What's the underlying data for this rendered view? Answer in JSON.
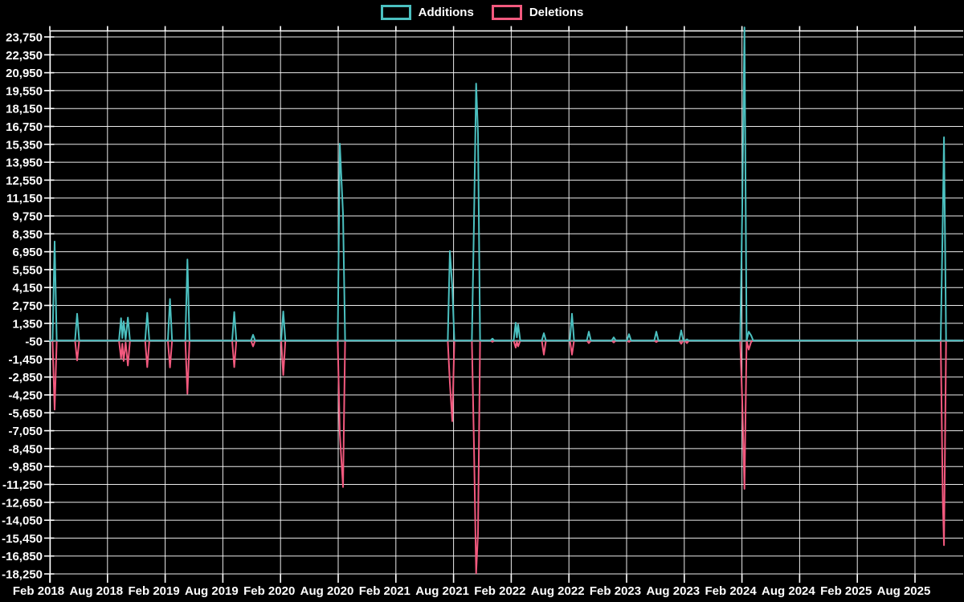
{
  "legend": {
    "additions_label": "Additions",
    "deletions_label": "Deletions"
  },
  "chart_data": {
    "type": "line",
    "title": "",
    "legend_position": "top-center",
    "grid": "on",
    "colors": {
      "background": "#000000",
      "grid": "#ffffff",
      "baseline": "#7E9E9E",
      "text": "#ffffff",
      "additions": "#4BC0C0",
      "deletions": "#F2597E"
    },
    "series_meta": [
      {
        "name": "Additions",
        "color": "#4BC0C0"
      },
      {
        "name": "Deletions",
        "color": "#F2597E"
      }
    ],
    "x_tick_labels": [
      "Feb 2018",
      "Aug 2018",
      "Feb 2019",
      "Aug 2019",
      "Feb 2020",
      "Aug 2020",
      "Feb 2021",
      "Aug 2021",
      "Feb 2022",
      "Aug 2022",
      "Feb 2023",
      "Aug 2023",
      "Feb 2024",
      "Aug 2024",
      "Feb 2025",
      "Aug 2025"
    ],
    "y_ticks": [
      23750,
      22350,
      20950,
      19550,
      18150,
      16750,
      15350,
      13950,
      12550,
      11150,
      9750,
      8350,
      6950,
      5550,
      4150,
      2750,
      1350,
      -50,
      -1450,
      -2850,
      -4250,
      -5650,
      -7050,
      -8450,
      -9850,
      -11250,
      -12650,
      -14050,
      -15450,
      -16850,
      -18250
    ],
    "y_axis": {
      "min": -18250,
      "max": 23750,
      "step": 1400
    },
    "x_axis": {
      "start": "Feb 2018",
      "end": "Aug 2025",
      "gridline_interval": "6 months"
    },
    "points_format": [
      "time_in_years",
      "additions",
      "deletions"
    ],
    "points": [
      [
        2018.083,
        0,
        0
      ],
      [
        2018.107,
        0,
        0
      ],
      [
        2018.125,
        7750,
        -5400
      ],
      [
        2018.143,
        0,
        0
      ],
      [
        2018.302,
        0,
        0
      ],
      [
        2018.32,
        2100,
        -1550
      ],
      [
        2018.338,
        0,
        0
      ],
      [
        2018.683,
        0,
        0
      ],
      [
        2018.701,
        1750,
        -1400
      ],
      [
        2018.712,
        200,
        -250
      ],
      [
        2018.723,
        1500,
        -1600
      ],
      [
        2018.741,
        100,
        -150
      ],
      [
        2018.76,
        1800,
        -1950
      ],
      [
        2018.778,
        0,
        0
      ],
      [
        2018.91,
        0,
        0
      ],
      [
        2018.928,
        2170,
        -2080
      ],
      [
        2018.946,
        0,
        0
      ],
      [
        2019.107,
        0,
        0
      ],
      [
        2019.125,
        3250,
        -2100
      ],
      [
        2019.143,
        0,
        0
      ],
      [
        2019.258,
        0,
        0
      ],
      [
        2019.276,
        6350,
        -4150
      ],
      [
        2019.294,
        0,
        0
      ],
      [
        2019.664,
        0,
        0
      ],
      [
        2019.682,
        2230,
        -2080
      ],
      [
        2019.7,
        0,
        0
      ],
      [
        2019.827,
        0,
        0
      ],
      [
        2019.845,
        450,
        -450
      ],
      [
        2019.863,
        0,
        0
      ],
      [
        2020.089,
        0,
        0
      ],
      [
        2020.107,
        2280,
        -2700
      ],
      [
        2020.125,
        0,
        0
      ],
      [
        2020.579,
        0,
        0
      ],
      [
        2020.597,
        15400,
        -7300
      ],
      [
        2020.625,
        9900,
        -11450
      ],
      [
        2020.643,
        0,
        0
      ],
      [
        2021.533,
        0,
        0
      ],
      [
        2021.551,
        7000,
        -3300
      ],
      [
        2021.572,
        4200,
        -6300
      ],
      [
        2021.59,
        0,
        0
      ],
      [
        2021.742,
        0,
        0
      ],
      [
        2021.76,
        9200,
        -8200
      ],
      [
        2021.779,
        20100,
        -18200
      ],
      [
        2021.795,
        16200,
        -15100
      ],
      [
        2021.813,
        0,
        0
      ],
      [
        2021.902,
        0,
        0
      ],
      [
        2021.92,
        150,
        -100
      ],
      [
        2021.938,
        0,
        0
      ],
      [
        2022.104,
        0,
        0
      ],
      [
        2022.122,
        1400,
        -550
      ],
      [
        2022.132,
        250,
        -100
      ],
      [
        2022.143,
        1250,
        -450
      ],
      [
        2022.161,
        0,
        0
      ],
      [
        2022.348,
        0,
        0
      ],
      [
        2022.366,
        580,
        -1100
      ],
      [
        2022.384,
        0,
        0
      ],
      [
        2022.592,
        0,
        0
      ],
      [
        2022.61,
        2100,
        -1100
      ],
      [
        2022.628,
        0,
        0
      ],
      [
        2022.738,
        0,
        0
      ],
      [
        2022.756,
        700,
        -200
      ],
      [
        2022.774,
        0,
        0
      ],
      [
        2022.954,
        0,
        0
      ],
      [
        2022.972,
        250,
        -150
      ],
      [
        2022.99,
        0,
        0
      ],
      [
        2023.086,
        0,
        0
      ],
      [
        2023.104,
        500,
        -100
      ],
      [
        2023.122,
        0,
        0
      ],
      [
        2023.323,
        0,
        0
      ],
      [
        2023.341,
        700,
        -120
      ],
      [
        2023.359,
        0,
        0
      ],
      [
        2023.539,
        0,
        0
      ],
      [
        2023.557,
        800,
        -250
      ],
      [
        2023.575,
        0,
        0
      ],
      [
        2023.588,
        0,
        0
      ],
      [
        2023.606,
        100,
        -200
      ],
      [
        2023.624,
        0,
        0
      ],
      [
        2024.068,
        0,
        0
      ],
      [
        2024.086,
        10500,
        -4800
      ],
      [
        2024.105,
        24500,
        -11600
      ],
      [
        2024.124,
        0,
        0
      ],
      [
        2024.142,
        700,
        -700
      ],
      [
        2024.163,
        400,
        -100
      ],
      [
        2024.181,
        0,
        0
      ],
      [
        2025.806,
        0,
        0
      ],
      [
        2025.824,
        9600,
        -12500
      ],
      [
        2025.835,
        15900,
        -16000
      ],
      [
        2025.853,
        0,
        0
      ],
      [
        2026.0,
        0,
        0
      ]
    ]
  }
}
